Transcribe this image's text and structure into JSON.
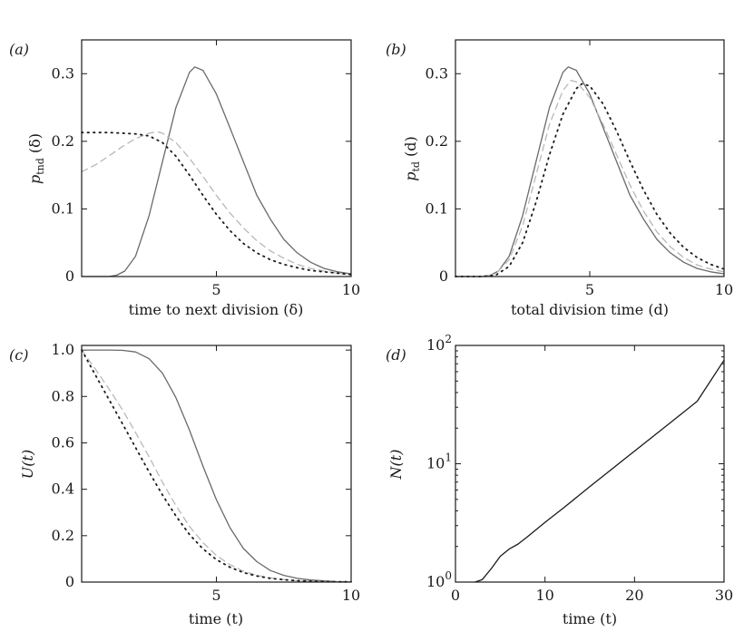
{
  "chart_data": [
    {
      "id": "a",
      "type": "line",
      "panel_label": "(a)",
      "xlabel": "time to next division (δ)",
      "ylabel": "p_tnd (δ)",
      "ylabel_main": "p",
      "ylabel_sub": "tnd",
      "ylabel_arg": " (δ)",
      "xlim": [
        0,
        10
      ],
      "ylim": [
        0,
        0.35
      ],
      "xticks": [
        5,
        10
      ],
      "yticks": [
        0,
        0.1,
        0.2,
        0.3
      ],
      "ytick_labels": [
        "0",
        "0.1",
        "0.2",
        "0.3"
      ],
      "series": [
        {
          "style": "solid",
          "color": "#6a6a6a",
          "x": [
            0,
            1,
            1.3,
            1.6,
            2,
            2.5,
            3,
            3.5,
            4,
            4.2,
            4.5,
            5,
            5.5,
            6,
            6.5,
            7,
            7.5,
            8,
            8.5,
            9,
            9.5,
            10
          ],
          "y": [
            0,
            0,
            0.002,
            0.008,
            0.03,
            0.09,
            0.17,
            0.25,
            0.302,
            0.31,
            0.305,
            0.27,
            0.22,
            0.17,
            0.12,
            0.085,
            0.055,
            0.035,
            0.021,
            0.012,
            0.007,
            0.004
          ]
        },
        {
          "style": "dashed",
          "color": "#b8b8b8",
          "x": [
            0,
            0.5,
            1,
            1.5,
            2,
            2.5,
            2.8,
            3,
            3.5,
            4,
            4.5,
            5,
            5.5,
            6,
            6.5,
            7,
            7.5,
            8,
            8.5,
            9,
            9.5,
            10
          ],
          "y": [
            0.155,
            0.165,
            0.178,
            0.192,
            0.204,
            0.212,
            0.214,
            0.212,
            0.198,
            0.175,
            0.148,
            0.12,
            0.094,
            0.072,
            0.053,
            0.038,
            0.027,
            0.018,
            0.012,
            0.008,
            0.005,
            0.003
          ]
        },
        {
          "style": "dotted",
          "color": "#1a1a1a",
          "x": [
            0,
            0.5,
            1,
            1.5,
            2,
            2.5,
            3,
            3.5,
            4,
            4.5,
            5,
            5.5,
            6,
            6.5,
            7,
            7.5,
            8,
            8.5,
            9,
            9.5,
            10
          ],
          "y": [
            0.213,
            0.213,
            0.213,
            0.212,
            0.211,
            0.208,
            0.198,
            0.178,
            0.15,
            0.12,
            0.092,
            0.068,
            0.049,
            0.035,
            0.025,
            0.018,
            0.013,
            0.009,
            0.007,
            0.005,
            0.003
          ]
        }
      ]
    },
    {
      "id": "b",
      "type": "line",
      "panel_label": "(b)",
      "xlabel": "total division time (d)",
      "ylabel": "p_td (d)",
      "ylabel_main": "p",
      "ylabel_sub": "td",
      "ylabel_arg": " (d)",
      "xlim": [
        0,
        10
      ],
      "ylim": [
        0,
        0.35
      ],
      "xticks": [
        5,
        10
      ],
      "yticks": [
        0,
        0.1,
        0.2,
        0.3
      ],
      "ytick_labels": [
        "0",
        "0.1",
        "0.2",
        "0.3"
      ],
      "series": [
        {
          "style": "solid",
          "color": "#6a6a6a",
          "x": [
            0,
            1,
            1.3,
            1.6,
            2,
            2.5,
            3,
            3.5,
            4,
            4.2,
            4.5,
            5,
            5.5,
            6,
            6.5,
            7,
            7.5,
            8,
            8.5,
            9,
            9.5,
            10
          ],
          "y": [
            0,
            0,
            0.002,
            0.008,
            0.03,
            0.09,
            0.17,
            0.25,
            0.302,
            0.31,
            0.305,
            0.27,
            0.22,
            0.17,
            0.12,
            0.085,
            0.055,
            0.035,
            0.021,
            0.012,
            0.007,
            0.004
          ]
        },
        {
          "style": "dashed",
          "color": "#b8b8b8",
          "x": [
            0,
            1,
            1.5,
            2,
            2.5,
            3,
            3.5,
            4,
            4.3,
            4.5,
            5,
            5.5,
            6,
            6.5,
            7,
            7.5,
            8,
            8.5,
            9,
            9.5,
            10
          ],
          "y": [
            0,
            0,
            0.004,
            0.025,
            0.075,
            0.15,
            0.225,
            0.275,
            0.29,
            0.288,
            0.265,
            0.225,
            0.18,
            0.135,
            0.097,
            0.066,
            0.044,
            0.028,
            0.017,
            0.011,
            0.007
          ]
        },
        {
          "style": "dotted",
          "color": "#1a1a1a",
          "x": [
            0,
            1,
            1.5,
            2,
            2.5,
            3,
            3.5,
            4,
            4.5,
            4.7,
            5,
            5.5,
            6,
            6.5,
            7,
            7.5,
            8,
            8.5,
            9,
            9.5,
            10
          ],
          "y": [
            0,
            0,
            0.002,
            0.015,
            0.05,
            0.11,
            0.18,
            0.24,
            0.278,
            0.285,
            0.282,
            0.255,
            0.215,
            0.17,
            0.128,
            0.092,
            0.064,
            0.043,
            0.028,
            0.018,
            0.011
          ]
        }
      ]
    },
    {
      "id": "c",
      "type": "line",
      "panel_label": "(c)",
      "xlabel": "time (t)",
      "ylabel": "U(t)",
      "xlim": [
        0,
        10
      ],
      "ylim": [
        0,
        1.02
      ],
      "xticks": [
        5,
        10
      ],
      "yticks": [
        0,
        0.2,
        0.4,
        0.6,
        0.8,
        1.0
      ],
      "ytick_labels": [
        "0",
        "0.2",
        "0.4",
        "0.6",
        "0.8",
        "1.0"
      ],
      "series": [
        {
          "style": "solid",
          "color": "#6a6a6a",
          "x": [
            0,
            1,
            1.5,
            2,
            2.5,
            3,
            3.5,
            4,
            4.5,
            5,
            5.5,
            6,
            6.5,
            7,
            7.5,
            8,
            8.5,
            9,
            9.5,
            10
          ],
          "y": [
            1,
            1,
            0.999,
            0.992,
            0.963,
            0.9,
            0.795,
            0.655,
            0.5,
            0.355,
            0.235,
            0.145,
            0.088,
            0.05,
            0.029,
            0.016,
            0.009,
            0.005,
            0.002,
            0.001
          ]
        },
        {
          "style": "dashed",
          "color": "#b8b8b8",
          "x": [
            0,
            0.5,
            1,
            1.5,
            2,
            2.5,
            3,
            3.5,
            4,
            4.5,
            5,
            5.5,
            6,
            6.5,
            7,
            7.5,
            8,
            8.5,
            9,
            9.5,
            10
          ],
          "y": [
            1,
            0.92,
            0.835,
            0.745,
            0.645,
            0.54,
            0.43,
            0.33,
            0.24,
            0.17,
            0.115,
            0.075,
            0.047,
            0.029,
            0.018,
            0.011,
            0.006,
            0.004,
            0.002,
            0.001,
            0.001
          ]
        },
        {
          "style": "dotted",
          "color": "#1a1a1a",
          "x": [
            0,
            0.5,
            1,
            1.5,
            2,
            2.5,
            3,
            3.5,
            4,
            4.5,
            5,
            5.5,
            6,
            6.5,
            7,
            7.5,
            8,
            8.5,
            9,
            9.5,
            10
          ],
          "y": [
            1,
            0.895,
            0.79,
            0.685,
            0.58,
            0.475,
            0.375,
            0.285,
            0.205,
            0.143,
            0.097,
            0.064,
            0.041,
            0.026,
            0.016,
            0.01,
            0.006,
            0.004,
            0.002,
            0.001,
            0.001
          ]
        }
      ]
    },
    {
      "id": "d",
      "type": "line",
      "panel_label": "(d)",
      "xlabel": "time (t)",
      "ylabel": "N(t)",
      "xlim": [
        0,
        30
      ],
      "ylim": [
        1,
        100
      ],
      "yscale": "log",
      "xticks": [
        0,
        10,
        20,
        30
      ],
      "yticks": [
        1,
        10,
        100
      ],
      "ytick_mantissa": [
        "10",
        "10",
        "10"
      ],
      "ytick_exponents": [
        "0",
        "1",
        "2"
      ],
      "series": [
        {
          "style": "solid",
          "color": "#1a1a1a",
          "x": [
            2.2,
            3,
            4,
            5,
            6,
            7,
            8,
            10,
            12,
            15,
            18,
            21,
            24,
            27,
            30
          ],
          "y": [
            1,
            1.05,
            1.3,
            1.65,
            1.9,
            2.1,
            2.4,
            3.2,
            4.2,
            6.4,
            9.7,
            14.7,
            22.2,
            33.7,
            75
          ]
        }
      ]
    }
  ]
}
